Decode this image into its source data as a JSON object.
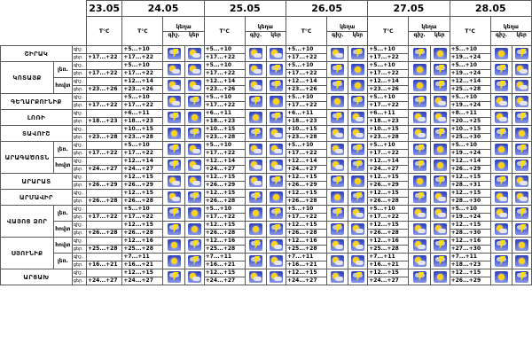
{
  "header": {
    "dates": [
      "23.05",
      "24.05",
      "25.05",
      "26.05",
      "27.05",
      "28.05"
    ],
    "temp_label": "T°C",
    "precip_label": "կեղա",
    "precip_short": "կեր",
    "day_label": "ցեղ.",
    "night_label": "գիշ."
  },
  "labels": {
    "day": "ցեր.",
    "night": "գիշ."
  },
  "regions": [
    {
      "name": "ՇԻՐԱԿ",
      "rows": [
        {
          "sub": "",
          "d23": "+17...+22",
          "days": [
            "+5...+10 / +17...+22",
            "+5...+10 / +17...+22",
            "+5...+10 / +17...+22",
            "+5...+10 / +17...+22",
            "+5...+10 / +19...+24"
          ]
        }
      ]
    },
    {
      "name": "ԿՈՏԱՅՔ",
      "rows": [
        {
          "sub": "լեռ.",
          "d23": "+17...+22",
          "days": [
            "+5...+10 / +17...+22",
            "+5...+10 / +17...+22",
            "+5...+10 / +17...+22",
            "+5...+10 / +17...+22",
            "+5...+10 / +19...+24"
          ]
        },
        {
          "sub": "հովտ",
          "d23": "+23...+26",
          "days": [
            "+12...+14 / +23...+26",
            "+12...+14 / +23...+26",
            "+12...+14 / +23...+26",
            "+12...+14 / +23...+26",
            "+12...+14 / +25...+28"
          ]
        }
      ]
    },
    {
      "name": "ԳԵՂԱՐՔՈՒՆԻՔ",
      "rows": [
        {
          "sub": "",
          "d23": "+17...+22",
          "days": [
            "+5...+10 / +17...+22",
            "+5...+10 / +17...+22",
            "+5...+10 / +17...+22",
            "+5...+10 / +17...+22",
            "+5...+10 / +19...+24"
          ]
        }
      ]
    },
    {
      "name": "ԼՈՌԻ",
      "rows": [
        {
          "sub": "",
          "d23": "+18...+23",
          "days": [
            "+6...+11 / +18...+23",
            "+6...+11 / +18...+23",
            "+6...+11 / +18...+23",
            "+6...+11 / +18...+23",
            "+8...+11 / +20...+25"
          ]
        }
      ]
    },
    {
      "name": "ՏԱՎՈՒՇ",
      "rows": [
        {
          "sub": "",
          "d23": "+23...+28",
          "days": [
            "+10...+15 / +23...+28",
            "+10...+15 / +23...+28",
            "+10...+15 / +23...+28",
            "+10...+15 / +23...+28",
            "+10...+15 / +25...+30"
          ]
        }
      ]
    },
    {
      "name": "ԱՐԱԳԱԾՈՏՆ",
      "rows": [
        {
          "sub": "լեռ.",
          "d23": "+17...+22",
          "days": [
            "+5...+10 / +17...+22",
            "+5...+10 / +17...+22",
            "+5...+10 / +17...+22",
            "+5...+10 / +17...+22",
            "+5...+10 / +19...+24"
          ]
        },
        {
          "sub": "հովտ",
          "d23": "+24...+27",
          "days": [
            "+12...+14 / +24...+27",
            "+12...+14 / +24...+27",
            "+12...+14 / +24...+27",
            "+12...+14 / +24...+27",
            "+12...+14 / +26...+29"
          ]
        }
      ]
    },
    {
      "name": "ԱՐԱՐԱՏ",
      "rows": [
        {
          "sub": "",
          "d23": "+26...+29",
          "days": [
            "+12...+15 / +26...+29",
            "+12...+15 / +26...+29",
            "+12...+15 / +26...+29",
            "+12...+15 / +26...+29",
            "+12...+15 / +28...+31"
          ]
        }
      ]
    },
    {
      "name": "ԱՐՄԱՎԻՐ",
      "rows": [
        {
          "sub": "",
          "d23": "+26...+28",
          "days": [
            "+12...+15 / +26...+28",
            "+12...+15 / +26...+28",
            "+12...+15 / +26...+28",
            "+12...+15 / +26...+28",
            "+12...+15 / +28...+30"
          ]
        }
      ]
    },
    {
      "name": "ՎԱՅՈՑ ՁՈՐ",
      "rows": [
        {
          "sub": "լեռ.",
          "d23": "+17...+22",
          "days": [
            "+5...+10 / +17...+22",
            "+5...+10 / +17...+22",
            "+5...+10 / +17...+22",
            "+5...+10 / +17...+22",
            "+5...+10 / +19...+24"
          ]
        },
        {
          "sub": "հովտ",
          "d23": "+26...+28",
          "days": [
            "+12...+15 / +26...+28",
            "+12...+15 / +26...+28",
            "+12...+15 / +26...+28",
            "+12...+15 / +26...+28",
            "+12...+15 / +28...+30"
          ]
        }
      ]
    },
    {
      "name": "ՍՅՈՒՆԻՔ",
      "rows": [
        {
          "sub": "հովտ",
          "d23": "+25...+28",
          "days": [
            "+12...+16 / +25...+28",
            "+12...+16 / +25...+28",
            "+12...+16 / +25...+28",
            "+12...+16 / +25...+28",
            "+12...+16 / +27...+30"
          ]
        },
        {
          "sub": "լեռ.",
          "d23": "+16...+21",
          "days": [
            "+7...+11 / +16...+21",
            "+7...+11 / +16...+21",
            "+7...+11 / +16...+21",
            "+7...+11 / +16...+21",
            "+7...+11 / +18...+23"
          ]
        }
      ]
    },
    {
      "name": "ԱՐՑԱԽ",
      "rows": [
        {
          "sub": "",
          "d23": "+24...+27",
          "days": [
            "+12...+15 / +24...+27",
            "+12...+15 / +24...+27",
            "+12...+15 / +24...+27",
            "+12...+15 / +24...+27",
            "+12...+15 / +26...+29"
          ]
        }
      ]
    }
  ],
  "icon_names": [
    "storm-icon",
    "sun-cloud-icon",
    "sun-cloud-icon",
    "storm-icon",
    "sun-icon"
  ]
}
